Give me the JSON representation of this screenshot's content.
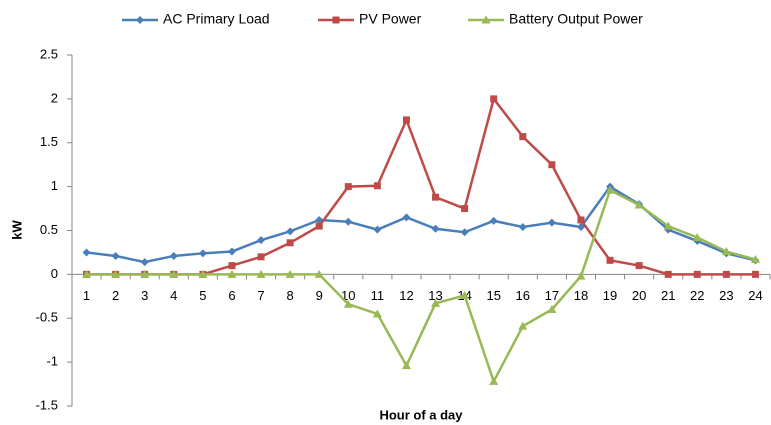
{
  "chart_data": {
    "type": "line",
    "x_label": "Hour of a day",
    "y_label": "kW",
    "categories": [
      "1",
      "2",
      "3",
      "4",
      "5",
      "6",
      "7",
      "8",
      "9",
      "10",
      "11",
      "12",
      "13",
      "14",
      "15",
      "16",
      "17",
      "18",
      "19",
      "20",
      "21",
      "22",
      "23",
      "24"
    ],
    "series": [
      {
        "name": "AC Primary Load",
        "color": "#4a7ebb",
        "marker": "diamond",
        "values": [
          0.25,
          0.21,
          0.14,
          0.21,
          0.24,
          0.26,
          0.39,
          0.49,
          0.62,
          0.6,
          0.51,
          0.65,
          0.52,
          0.48,
          0.61,
          0.54,
          0.59,
          0.54,
          1.0,
          0.8,
          0.51,
          0.38,
          0.24,
          0.16
        ]
      },
      {
        "name": "PV Power",
        "color": "#be4b48",
        "marker": "square",
        "values": [
          0,
          0,
          0,
          0,
          0,
          0.1,
          0.2,
          0.36,
          0.55,
          1.0,
          1.01,
          1.76,
          0.88,
          0.75,
          2.0,
          1.57,
          1.25,
          0.62,
          0.16,
          0.1,
          0,
          0,
          0,
          0
        ]
      },
      {
        "name": "Battery Output Power",
        "color": "#98b954",
        "marker": "triangle",
        "values": [
          0,
          0,
          0,
          0,
          0,
          0,
          0,
          0,
          0,
          -0.34,
          -0.45,
          -1.04,
          -0.33,
          -0.24,
          -1.22,
          -0.59,
          -0.4,
          -0.02,
          0.96,
          0.79,
          0.55,
          0.42,
          0.26,
          0.17
        ]
      }
    ],
    "ylim": [
      -1.5,
      2.5
    ],
    "yticks": [
      -1.5,
      -1,
      -0.5,
      0,
      0.5,
      1,
      1.5,
      2,
      2.5
    ],
    "grid": false,
    "legend": "top"
  }
}
